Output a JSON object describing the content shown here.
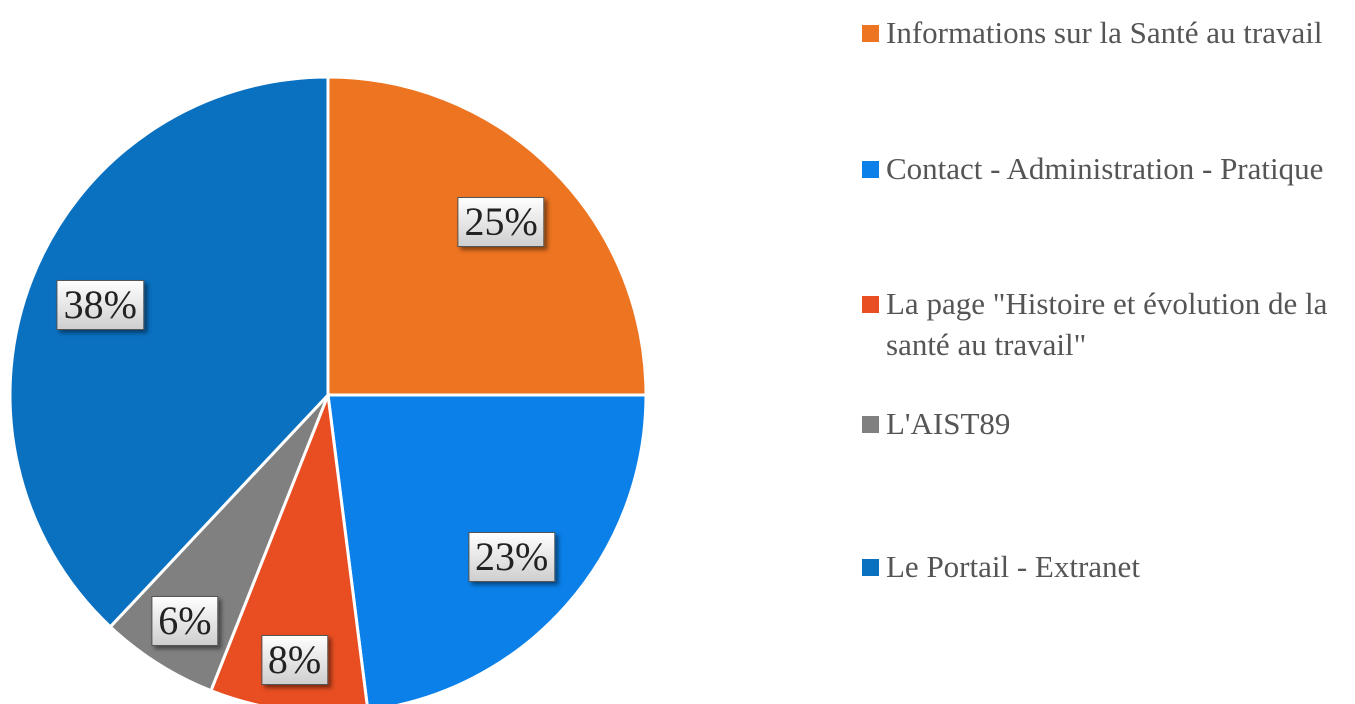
{
  "chart_data": {
    "type": "pie",
    "categories": [
      "Informations sur la Santé au travail",
      "Contact - Administration - Pratique",
      "La page \"Histoire et évolution de la santé au travail\"",
      "L'AIST89",
      "Le Portail - Extranet"
    ],
    "values": [
      25,
      23,
      8,
      6,
      38
    ],
    "value_labels": [
      "25%",
      "23%",
      "8%",
      "6%",
      "38%"
    ],
    "colors": [
      "#ed7420",
      "#0a80e8",
      "#e84e22",
      "#808080",
      "#0a70c0"
    ],
    "legend": "right"
  }
}
